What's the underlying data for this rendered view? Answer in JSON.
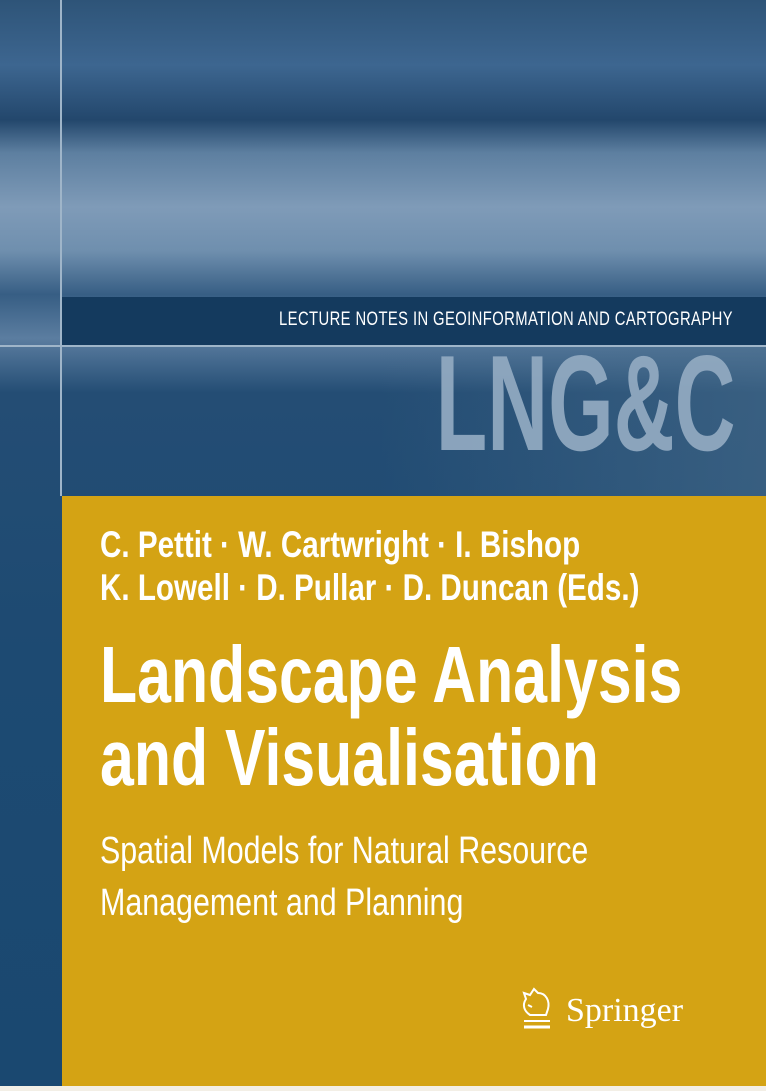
{
  "series": {
    "name": "LECTURE NOTES IN GEOINFORMATION AND CARTOGRAPHY",
    "logo": "LNG&C"
  },
  "authors": [
    "C. Pettit · W. Cartwright · I. Bishop",
    "K. Lowell · D. Pullar · D. Duncan (Eds.)"
  ],
  "title": [
    "Landscape Analysis",
    "and Visualisation"
  ],
  "subtitle": [
    "Spatial Models for Natural Resource",
    "Management and Planning"
  ],
  "publisher": {
    "name": "Springer",
    "icon": "knight-horse-icon"
  },
  "colors": {
    "panel": "#d4a314",
    "band": "#143a5e",
    "logo": "#93abc2"
  }
}
